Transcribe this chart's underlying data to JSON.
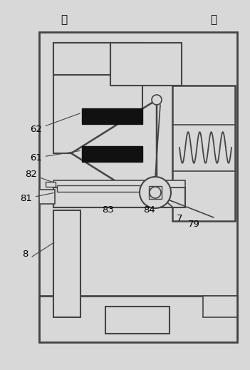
{
  "bg_color": "#d8d8d8",
  "line_color": "#444444",
  "black_fill": "#111111",
  "label_qian": "前",
  "label_hou": "后",
  "figsize": [
    3.51,
    5.19
  ],
  "dpi": 100
}
